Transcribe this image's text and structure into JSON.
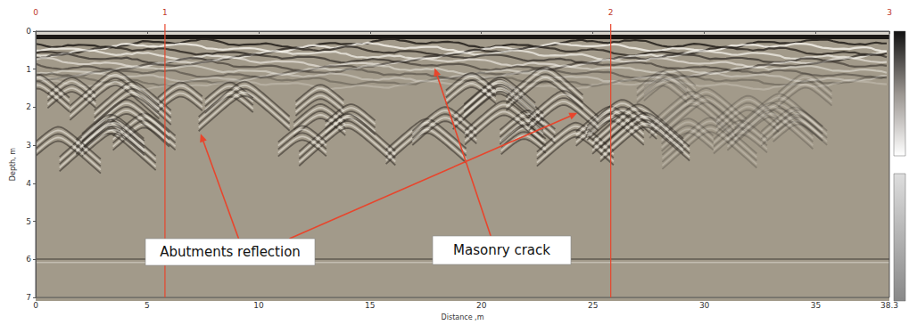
{
  "chart_data": {
    "type": "radargram",
    "x_label": "Distance ,m",
    "y_label": "Depth, m",
    "xlim": [
      0,
      38.3
    ],
    "xticks": [
      0,
      5,
      10,
      15,
      20,
      25,
      30,
      35
    ],
    "ylim": [
      0,
      7
    ],
    "yticks": [
      0,
      1,
      2,
      3,
      4,
      5,
      6,
      7
    ],
    "markers": [
      {
        "x": 0,
        "label": "0"
      },
      {
        "x": 5.8,
        "label": "1"
      },
      {
        "x": 25.8,
        "label": "2"
      },
      {
        "x": 38.3,
        "label": "3"
      }
    ],
    "annotations": [
      {
        "text": "Abutments reflection",
        "points": [
          [
            7.4,
            2.7
          ],
          [
            24.3,
            2.15
          ]
        ]
      },
      {
        "text": "Masonry crack",
        "points": [
          [
            17.9,
            0.97
          ]
        ]
      }
    ]
  }
}
